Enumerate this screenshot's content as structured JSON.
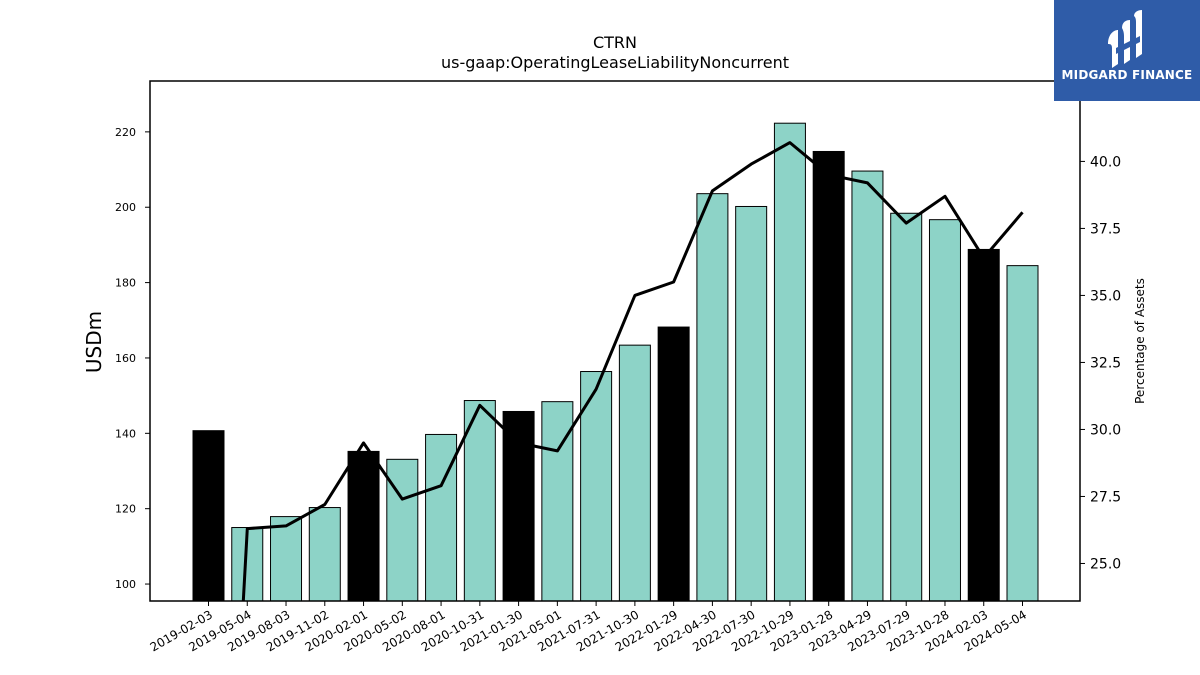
{
  "chart_data": {
    "type": "bar+line",
    "title": "CTRN",
    "subtitle": "us-gaap:OperatingLeaseLiabilityNoncurrent",
    "ylabel": "USDm",
    "y2label": "Percentage of Assets",
    "categories": [
      "2019-02-03",
      "2019-05-04",
      "2019-08-03",
      "2019-11-02",
      "2020-02-01",
      "2020-05-02",
      "2020-08-01",
      "2020-10-31",
      "2021-01-30",
      "2021-05-01",
      "2021-07-31",
      "2021-10-30",
      "2022-01-29",
      "2022-04-30",
      "2022-07-30",
      "2022-10-29",
      "2023-01-28",
      "2023-04-29",
      "2023-07-29",
      "2023-10-28",
      "2024-02-03",
      "2024-05-04"
    ],
    "ylim": [
      95.5,
      233.5
    ],
    "y2lim": [
      23.6,
      43.0
    ],
    "yticks": [
      100,
      120,
      140,
      160,
      180,
      200,
      220
    ],
    "y2ticks": [
      25.0,
      27.5,
      30.0,
      32.5,
      35.0,
      37.5,
      40.0
    ],
    "series": [
      {
        "kind": "bar",
        "values": [
          140.7,
          115.0,
          117.9,
          120.3,
          135.2,
          133.1,
          139.7,
          148.7,
          145.8,
          148.4,
          156.4,
          163.4,
          168.2,
          203.6,
          200.2,
          222.3,
          214.8,
          209.6,
          198.4,
          196.7,
          188.8,
          184.5
        ],
        "highlight": [
          true,
          false,
          false,
          false,
          true,
          false,
          false,
          false,
          true,
          false,
          false,
          false,
          true,
          false,
          false,
          false,
          true,
          false,
          false,
          false,
          true,
          false
        ]
      },
      {
        "kind": "line",
        "axis": "y2",
        "values": [
          null,
          26.3,
          26.4,
          27.2,
          29.5,
          27.4,
          27.9,
          30.9,
          29.5,
          29.2,
          31.5,
          35.0,
          35.5,
          38.9,
          39.9,
          40.7,
          39.5,
          39.2,
          37.7,
          38.7,
          36.4,
          38.1
        ],
        "start_below_axis": true
      }
    ],
    "colors": {
      "bar": "#8dd3c7",
      "highlight_bar": "#000000",
      "line": "#000000"
    }
  },
  "logo": {
    "text": "MIDGARD FINANCE",
    "background": "#2f5ca8",
    "foreground": "#ffffff"
  }
}
